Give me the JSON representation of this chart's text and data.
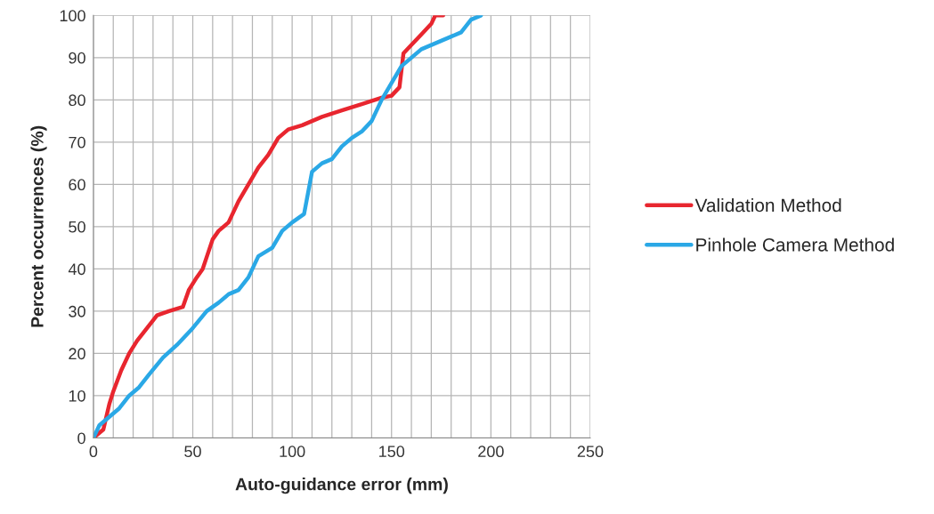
{
  "chart_data": {
    "type": "line",
    "xlabel": "Auto-guidance error (mm)",
    "ylabel": "Percent occurrences (%)",
    "xlim": [
      0,
      250
    ],
    "ylim": [
      0,
      100
    ],
    "xticks": [
      0,
      {
        "value": 10,
        "label": null
      },
      {
        "value": 20,
        "label": null
      },
      {
        "value": 30,
        "label": null
      },
      {
        "value": 40,
        "label": null
      },
      50,
      {
        "value": 60,
        "label": null
      },
      {
        "value": 70,
        "label": null
      },
      {
        "value": 80,
        "label": null
      },
      {
        "value": 90,
        "label": null
      },
      100,
      {
        "value": 110,
        "label": null
      },
      {
        "value": 120,
        "label": null
      },
      {
        "value": 130,
        "label": null
      },
      {
        "value": 140,
        "label": null
      },
      150,
      {
        "value": 160,
        "label": null
      },
      {
        "value": 170,
        "label": null
      },
      {
        "value": 180,
        "label": null
      },
      {
        "value": 190,
        "label": null
      },
      200,
      {
        "value": 210,
        "label": null
      },
      {
        "value": 220,
        "label": null
      },
      {
        "value": 230,
        "label": null
      },
      {
        "value": 240,
        "label": null
      },
      250
    ],
    "yticks": [
      0,
      10,
      20,
      30,
      40,
      50,
      60,
      70,
      80,
      90,
      100
    ],
    "grid": true,
    "legend": "right",
    "marker": "none",
    "line_style": "solid",
    "series": [
      {
        "name": "Validation Method",
        "color": "#e8262f",
        "x": [
          0,
          5,
          8,
          10,
          14,
          18,
          22,
          27,
          32,
          38,
          45,
          48,
          52,
          55,
          60,
          63,
          68,
          73,
          78,
          83,
          88,
          93,
          98,
          105,
          115,
          125,
          135,
          145,
          150,
          154,
          156,
          160,
          165,
          170,
          172,
          176
        ],
        "values": [
          0,
          2,
          8,
          11,
          16,
          20,
          23,
          26,
          29,
          30,
          31,
          35,
          38,
          40,
          47,
          49,
          51,
          56,
          60,
          64,
          67,
          71,
          73,
          74,
          76,
          77.5,
          79,
          80.5,
          81,
          83,
          91,
          93,
          95.5,
          98,
          100,
          100
        ]
      },
      {
        "name": "Pinhole Camera Method",
        "color": "#2aa8e6",
        "x": [
          0,
          3,
          8,
          13,
          18,
          23,
          28,
          35,
          42,
          50,
          57,
          63,
          68,
          73,
          78,
          83,
          90,
          95,
          100,
          106,
          110,
          115,
          120,
          125,
          130,
          135,
          140,
          145,
          150,
          155,
          160,
          165,
          170,
          180,
          185,
          190,
          195
        ],
        "values": [
          0,
          3,
          5,
          7,
          10,
          12,
          15,
          19,
          22,
          26,
          30,
          32,
          34,
          35,
          38,
          43,
          45,
          49,
          51,
          53,
          63,
          65,
          66,
          69,
          71,
          72.5,
          75,
          80,
          84,
          88,
          90,
          92,
          93,
          95,
          96,
          99,
          100
        ]
      }
    ]
  }
}
